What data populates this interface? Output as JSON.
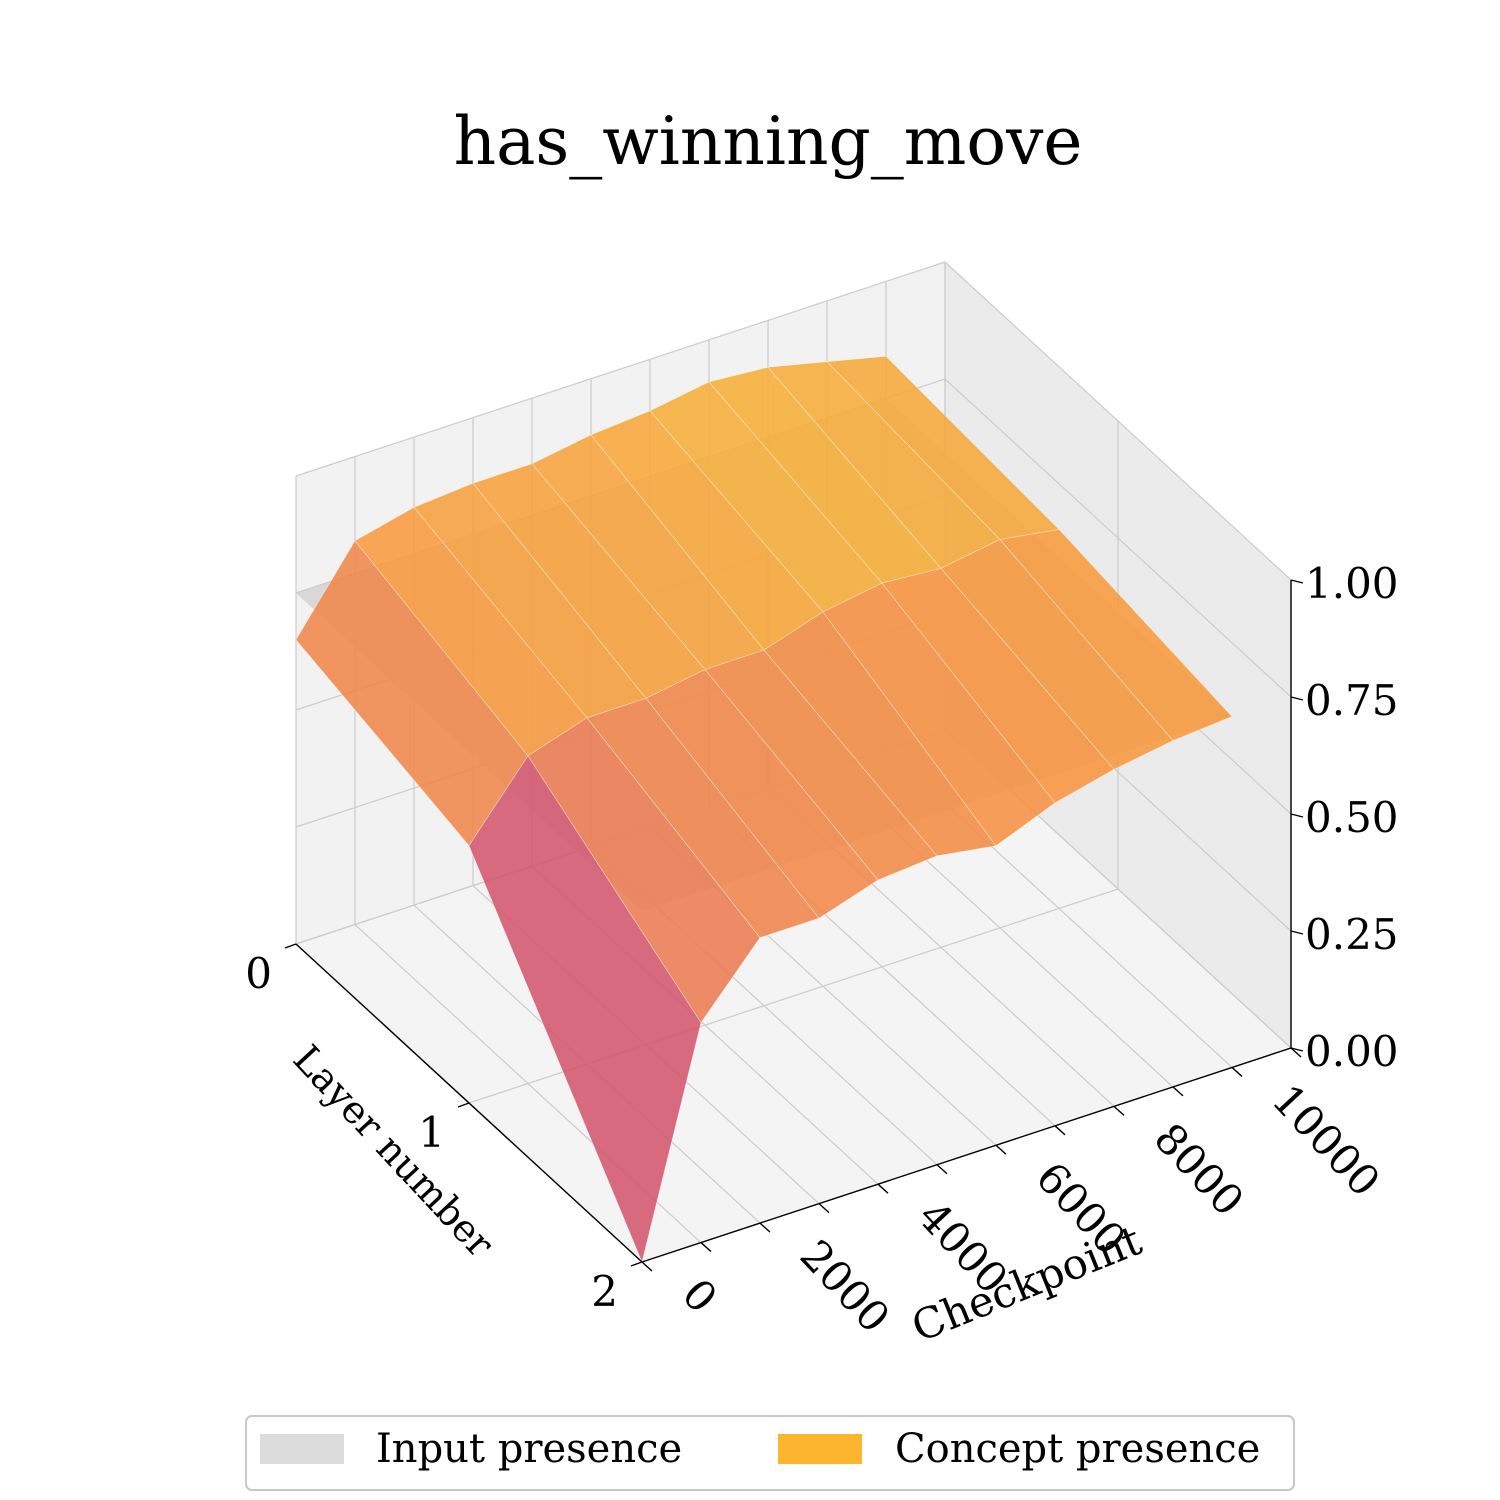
{
  "chart_data": {
    "type": "surface3d",
    "title": "has_winning_move",
    "xlabel": "Checkpoint",
    "ylabel": "Layer number",
    "zlabel": "",
    "x_ticks": [
      "0",
      "2000",
      "4000",
      "6000",
      "8000",
      "10000"
    ],
    "y_ticks": [
      "0",
      "1",
      "2"
    ],
    "z_ticks": [
      "0.00",
      "0.25",
      "0.50",
      "0.75",
      "1.00"
    ],
    "xlim": [
      0,
      11000
    ],
    "ylim": [
      0,
      2
    ],
    "zlim": [
      0,
      1.0
    ],
    "checkpoints": [
      0,
      1000,
      2000,
      3000,
      4000,
      5000,
      6000,
      7000,
      8000,
      9000,
      10000
    ],
    "series": [
      {
        "name": "Concept presence",
        "color": "#fdb42f",
        "surface": [
          [
            0.65,
            0.82,
            0.85,
            0.86,
            0.86,
            0.88,
            0.89,
            0.91,
            0.9,
            0.87,
            0.84
          ],
          [
            0.55,
            0.7,
            0.74,
            0.74,
            0.76,
            0.76,
            0.8,
            0.82,
            0.81,
            0.83,
            0.81
          ],
          [
            0.0,
            0.47,
            0.61,
            0.61,
            0.65,
            0.66,
            0.64,
            0.69,
            0.72,
            0.74,
            0.75
          ]
        ]
      },
      {
        "name": "Input presence",
        "color": "#cfcfcf",
        "plane_value": 0.75
      }
    ],
    "legend": [
      {
        "label": "Input presence",
        "color": "#dcdcdc"
      },
      {
        "label": "Concept presence",
        "color": "#fdb42f"
      }
    ],
    "legend_position": "bottom-center",
    "grid": true
  }
}
